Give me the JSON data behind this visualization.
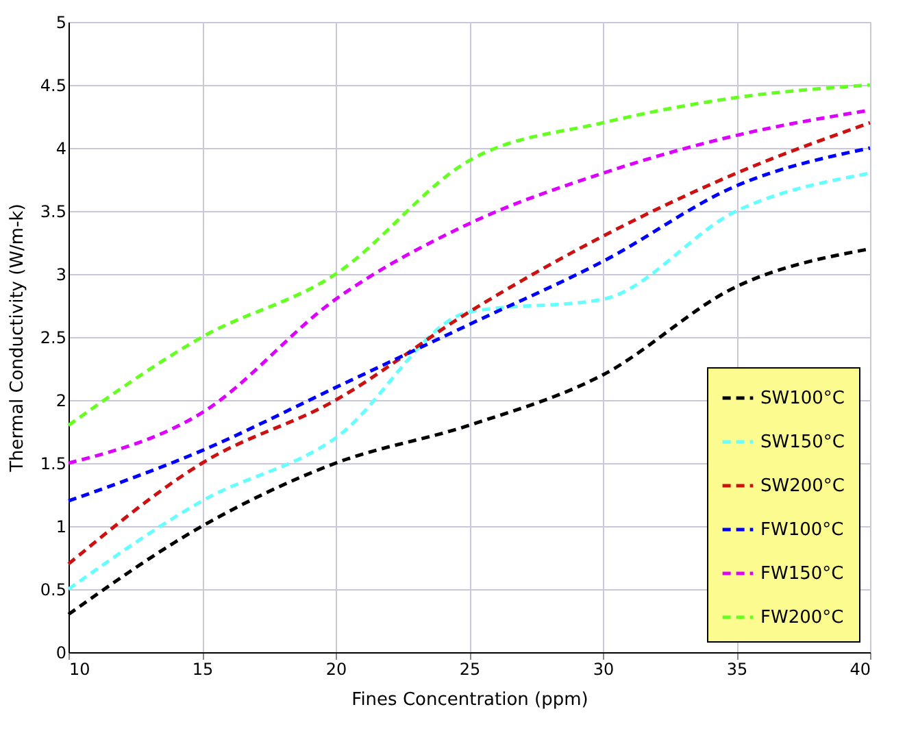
{
  "chart_data": {
    "type": "line",
    "xlabel": "Fines Concentration (ppm)",
    "ylabel": "Thermal Conductivity (W/m-k)",
    "x": [
      10,
      15,
      20,
      25,
      30,
      35,
      40
    ],
    "series": [
      {
        "name": "SW100°C",
        "color": "#000000",
        "values": [
          0.3,
          1.0,
          1.5,
          1.8,
          2.2,
          2.9,
          3.2
        ]
      },
      {
        "name": "SW150°C",
        "color": "#66ffff",
        "values": [
          0.5,
          1.2,
          1.7,
          2.7,
          2.8,
          3.5,
          3.8
        ]
      },
      {
        "name": "SW200°C",
        "color": "#cc1111",
        "values": [
          0.7,
          1.5,
          2.0,
          2.7,
          3.3,
          3.8,
          4.2
        ]
      },
      {
        "name": "FW100°C",
        "color": "#0000ff",
        "values": [
          1.2,
          1.6,
          2.1,
          2.6,
          3.1,
          3.7,
          4.0
        ]
      },
      {
        "name": "FW150°C",
        "color": "#dd00ff",
        "values": [
          1.5,
          1.9,
          2.8,
          3.4,
          3.8,
          4.1,
          4.3
        ]
      },
      {
        "name": "FW200°C",
        "color": "#66ff22",
        "values": [
          1.8,
          2.5,
          3.0,
          3.9,
          4.2,
          4.4,
          4.5
        ]
      }
    ],
    "xlim": [
      10,
      40
    ],
    "xticks": [
      10,
      15,
      20,
      25,
      30,
      35,
      40
    ],
    "ylim": [
      0,
      5
    ],
    "yticks": [
      0,
      0.5,
      1,
      1.5,
      2,
      2.5,
      3,
      3.5,
      4,
      4.5,
      5
    ],
    "grid": true,
    "legend": "bottom right",
    "marker": "none",
    "line_style": "dashed"
  }
}
